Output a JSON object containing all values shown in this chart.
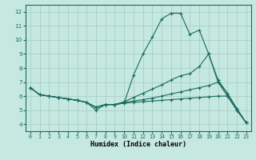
{
  "xlabel": "Humidex (Indice chaleur)",
  "xlim": [
    -0.5,
    23.5
  ],
  "ylim": [
    3.5,
    12.5
  ],
  "xticks": [
    0,
    1,
    2,
    3,
    4,
    5,
    6,
    7,
    8,
    9,
    10,
    11,
    12,
    13,
    14,
    15,
    16,
    17,
    18,
    19,
    20,
    21,
    22,
    23
  ],
  "yticks": [
    4,
    5,
    6,
    7,
    8,
    9,
    10,
    11,
    12
  ],
  "bg_color": "#c5e8e0",
  "grid_color": "#a8d0c8",
  "line_color": "#1a6b60",
  "lines": [
    {
      "x": [
        0,
        1,
        2,
        3,
        4,
        5,
        6,
        7,
        8,
        9,
        10,
        11,
        12,
        13,
        14,
        15,
        16,
        17,
        18,
        19,
        20,
        21,
        22,
        23
      ],
      "y": [
        6.6,
        6.1,
        6.0,
        5.9,
        5.8,
        5.7,
        5.55,
        5.0,
        5.4,
        5.4,
        5.5,
        7.5,
        9.0,
        10.2,
        11.5,
        11.9,
        11.9,
        10.4,
        10.7,
        9.0,
        7.0,
        6.0,
        5.0,
        4.1
      ]
    },
    {
      "x": [
        0,
        1,
        2,
        3,
        4,
        5,
        6,
        7,
        8,
        9,
        10,
        11,
        12,
        13,
        14,
        15,
        16,
        17,
        18,
        19,
        20,
        21,
        22,
        23
      ],
      "y": [
        6.6,
        6.1,
        6.0,
        5.9,
        5.8,
        5.7,
        5.55,
        5.2,
        5.4,
        5.4,
        5.6,
        5.9,
        6.2,
        6.5,
        6.8,
        7.15,
        7.45,
        7.6,
        8.1,
        9.0,
        7.15,
        6.2,
        5.1,
        4.1
      ]
    },
    {
      "x": [
        0,
        1,
        2,
        3,
        4,
        5,
        6,
        7,
        8,
        9,
        10,
        11,
        12,
        13,
        14,
        15,
        16,
        17,
        18,
        19,
        20,
        21,
        22,
        23
      ],
      "y": [
        6.6,
        6.1,
        6.0,
        5.9,
        5.8,
        5.7,
        5.55,
        5.2,
        5.4,
        5.4,
        5.55,
        5.65,
        5.75,
        5.85,
        6.0,
        6.15,
        6.3,
        6.45,
        6.6,
        6.75,
        7.0,
        6.2,
        5.1,
        4.1
      ]
    },
    {
      "x": [
        0,
        1,
        2,
        3,
        4,
        5,
        6,
        7,
        8,
        9,
        10,
        11,
        12,
        13,
        14,
        15,
        16,
        17,
        18,
        19,
        20,
        21,
        22,
        23
      ],
      "y": [
        6.6,
        6.1,
        6.0,
        5.9,
        5.8,
        5.7,
        5.55,
        5.2,
        5.4,
        5.4,
        5.5,
        5.55,
        5.6,
        5.65,
        5.7,
        5.75,
        5.8,
        5.85,
        5.9,
        5.95,
        6.0,
        6.0,
        5.0,
        4.1
      ]
    }
  ]
}
